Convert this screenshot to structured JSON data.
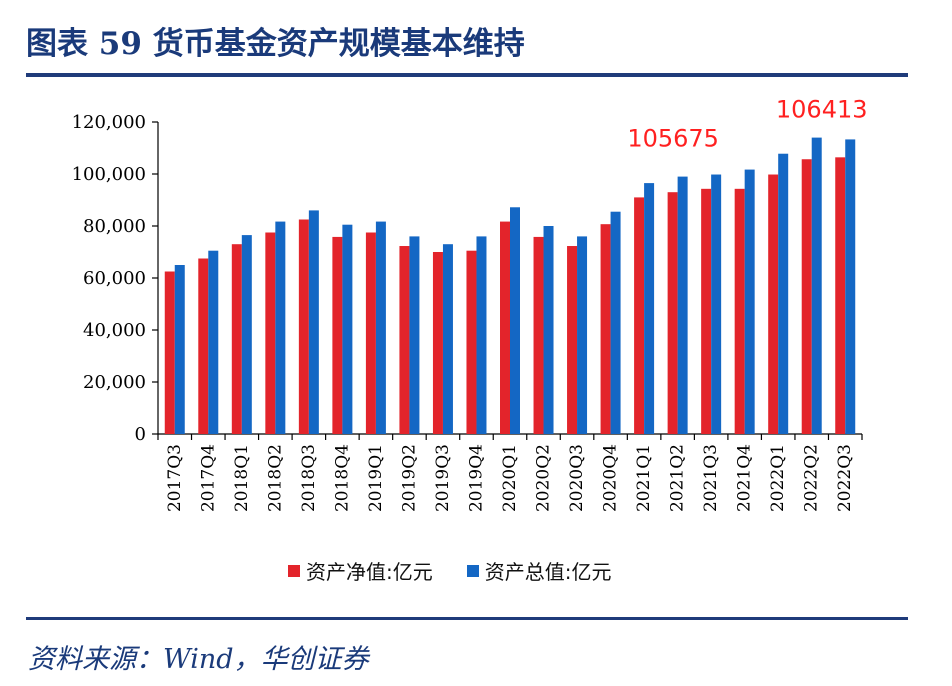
{
  "title": "图表 59  货币基金资产规模基本维持",
  "source": "资料来源：Wind，华创证券",
  "colors": {
    "net": "#e3242b",
    "total": "#1467c4",
    "annotation": "#ff2020",
    "axis": "#000000",
    "title": "#1a3a7a"
  },
  "chart_data": {
    "type": "bar",
    "title": "货币基金资产规模基本维持",
    "xlabel": "",
    "ylabel": "",
    "ylim": [
      0,
      120000
    ],
    "yticks": [
      0,
      20000,
      40000,
      60000,
      80000,
      100000,
      120000
    ],
    "ytick_labels": [
      "0",
      "20,000",
      "40,000",
      "60,000",
      "80,000",
      "100,000",
      "120,000"
    ],
    "categories": [
      "2017Q3",
      "2017Q4",
      "2018Q1",
      "2018Q2",
      "2018Q3",
      "2018Q4",
      "2019Q1",
      "2019Q2",
      "2019Q3",
      "2019Q4",
      "2020Q1",
      "2020Q2",
      "2020Q3",
      "2020Q4",
      "2021Q1",
      "2021Q2",
      "2021Q3",
      "2021Q4",
      "2022Q1",
      "2022Q2",
      "2022Q3"
    ],
    "series": [
      {
        "name": "资产净值:亿元",
        "color": "#e3242b",
        "values": [
          62500,
          67500,
          73000,
          77500,
          82500,
          75800,
          77500,
          72300,
          70000,
          70500,
          81700,
          75800,
          72300,
          80700,
          91000,
          93000,
          94300,
          94300,
          99800,
          105675,
          106413
        ]
      },
      {
        "name": "资产总值:亿元",
        "color": "#1467c4",
        "values": [
          65000,
          70500,
          76500,
          81700,
          86000,
          80500,
          81700,
          76000,
          73000,
          76000,
          87200,
          80000,
          76000,
          85500,
          96500,
          99000,
          99800,
          101700,
          107800,
          114000,
          113300
        ]
      }
    ],
    "annotations": [
      {
        "text": "105675",
        "category": "2021Q3"
      },
      {
        "text": "106413",
        "category": "2022Q2"
      }
    ],
    "legend_position": "bottom"
  }
}
